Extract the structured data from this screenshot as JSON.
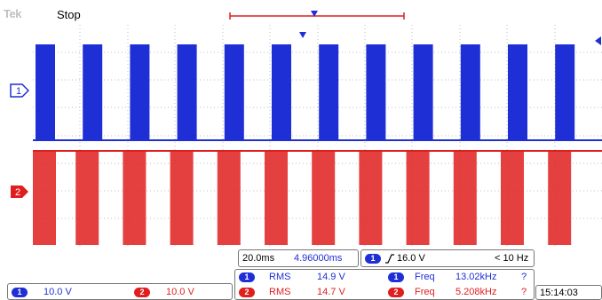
{
  "header": {
    "brand": "Tek",
    "status": "Stop"
  },
  "markers": {
    "ch1_label": "1",
    "ch2_label": "2"
  },
  "horizontal": {
    "timebase": "20.0ms",
    "delay": "4.96000ms"
  },
  "trigger": {
    "channel": "1",
    "level": "16.0 V",
    "filter": "< 10 Hz"
  },
  "measurements": [
    {
      "channel": "1",
      "name": "RMS",
      "value": "14.9 V",
      "name2": "Freq",
      "value2": "13.02kHz",
      "flag": "?"
    },
    {
      "channel": "2",
      "name": "RMS",
      "value": "14.7 V",
      "name2": "Freq",
      "value2": "5.208kHz",
      "flag": "?"
    }
  ],
  "channels": [
    {
      "label": "1",
      "scale": "10.0 V"
    },
    {
      "label": "2",
      "scale": "10.0 V"
    }
  ],
  "clock": "15:14:03",
  "colors": {
    "ch1": "#1f2fd6",
    "ch2": "#e01e1e",
    "grid": "#bfbfbf"
  }
}
